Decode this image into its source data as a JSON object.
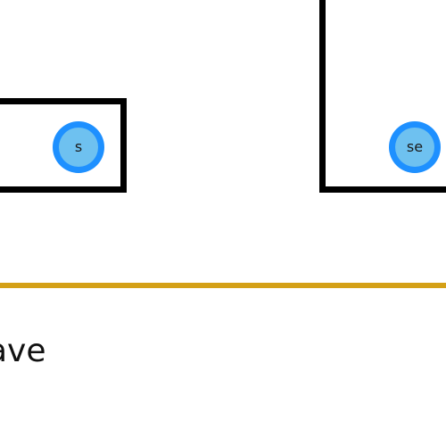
{
  "handles": {
    "left_label": "s",
    "right_label": "se"
  },
  "footer": {
    "label": "ave"
  },
  "colors": {
    "box_border": "#000000",
    "handle_outer": "#1e90ff",
    "handle_inner": "#6ec1f0",
    "divider": "#d4a017",
    "text": "#111111"
  }
}
